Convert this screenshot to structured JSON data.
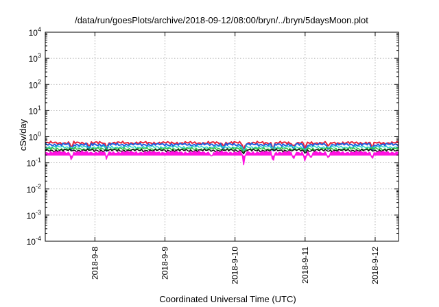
{
  "chart_data": {
    "type": "line",
    "title": "/data/run/goesPlots/archive/2018-09-12/08:00/bryn/../bryn/5daysMoon.plot",
    "xlabel": "Coordinated Universal Time (UTC)",
    "ylabel": "cSv/day",
    "x_scale": "date",
    "y_scale": "log",
    "xlim": [
      "2018-09-07T07:00",
      "2018-09-12T08:00"
    ],
    "ylim": [
      0.0001,
      10000
    ],
    "grid": true,
    "legend": "none",
    "y_ticks": [
      {
        "value": 0.0001,
        "base": "10",
        "exp": "-4"
      },
      {
        "value": 0.001,
        "base": "10",
        "exp": "-3"
      },
      {
        "value": 0.01,
        "base": "10",
        "exp": "-2"
      },
      {
        "value": 0.1,
        "base": "10",
        "exp": "-1"
      },
      {
        "value": 1,
        "base": "10",
        "exp": "0"
      },
      {
        "value": 10,
        "base": "10",
        "exp": "1"
      },
      {
        "value": 100,
        "base": "10",
        "exp": "2"
      },
      {
        "value": 1000,
        "base": "10",
        "exp": "3"
      },
      {
        "value": 10000,
        "base": "10",
        "exp": "4"
      }
    ],
    "x_ticks": [
      {
        "value": "2018-09-08",
        "label": "2018-9-8"
      },
      {
        "value": "2018-09-09",
        "label": "2018-9-9"
      },
      {
        "value": "2018-09-10",
        "label": "2018-9-10"
      },
      {
        "value": "2018-09-11",
        "label": "2018-9-11"
      },
      {
        "value": "2018-09-12",
        "label": "2018-9-12"
      }
    ],
    "series": [
      {
        "color": "#e8203a",
        "base": 0.58,
        "width": 2,
        "fill": false,
        "dips": [
          {
            "x": "2018-09-07T16:00",
            "y": 0.35
          },
          {
            "x": "2018-09-07T22:00",
            "y": 0.42
          },
          {
            "x": "2018-09-08T04:00",
            "y": 0.38
          },
          {
            "x": "2018-09-09T20:00",
            "y": 0.45
          },
          {
            "x": "2018-09-10T03:00",
            "y": 0.3
          },
          {
            "x": "2018-09-10T13:00",
            "y": 0.34
          },
          {
            "x": "2018-09-10T20:00",
            "y": 0.42
          },
          {
            "x": "2018-09-11T00:00",
            "y": 0.32
          },
          {
            "x": "2018-09-11T08:00",
            "y": 0.4
          },
          {
            "x": "2018-09-11T23:00",
            "y": 0.35
          }
        ]
      },
      {
        "color": "#1f5fe0",
        "base": 0.5,
        "width": 2,
        "fill": false,
        "dips": [
          {
            "x": "2018-09-07T16:00",
            "y": 0.25
          },
          {
            "x": "2018-09-07T22:00",
            "y": 0.3
          },
          {
            "x": "2018-09-08T04:00",
            "y": 0.26
          },
          {
            "x": "2018-09-09T20:00",
            "y": 0.32
          },
          {
            "x": "2018-09-10T03:00",
            "y": 0.2
          },
          {
            "x": "2018-09-10T13:00",
            "y": 0.22
          },
          {
            "x": "2018-09-10T20:00",
            "y": 0.3
          },
          {
            "x": "2018-09-11T00:00",
            "y": 0.2
          },
          {
            "x": "2018-09-11T08:00",
            "y": 0.27
          },
          {
            "x": "2018-09-11T23:00",
            "y": 0.24
          }
        ]
      },
      {
        "color": "#22d0c8",
        "base": 0.4,
        "width": 1.5,
        "fill": false,
        "dips": [
          {
            "x": "2018-09-10T03:00",
            "y": 0.28
          },
          {
            "x": "2018-09-11T00:00",
            "y": 0.3
          }
        ]
      },
      {
        "color": "#2fbf3a",
        "base": 0.34,
        "width": 1.5,
        "fill": false,
        "dips": [
          {
            "x": "2018-09-10T03:00",
            "y": 0.25
          },
          {
            "x": "2018-09-11T00:00",
            "y": 0.26
          }
        ]
      },
      {
        "color": "#111111",
        "base": 0.3,
        "width": 1.5,
        "fill": false,
        "dips": [
          {
            "x": "2018-09-10T03:00",
            "y": 0.22
          },
          {
            "x": "2018-09-11T00:00",
            "y": 0.23
          }
        ]
      },
      {
        "color": "#ff10e0",
        "base": 0.25,
        "width": 1.5,
        "fill": true,
        "fill_base": 0.19,
        "dips": [
          {
            "x": "2018-09-07T16:00",
            "y": 0.11
          },
          {
            "x": "2018-09-08T04:00",
            "y": 0.13
          },
          {
            "x": "2018-09-09T16:00",
            "y": 0.16
          },
          {
            "x": "2018-09-10T03:00",
            "y": 0.07
          },
          {
            "x": "2018-09-10T13:00",
            "y": 0.09
          },
          {
            "x": "2018-09-10T20:00",
            "y": 0.11
          },
          {
            "x": "2018-09-11T00:00",
            "y": 0.1
          },
          {
            "x": "2018-09-11T02:00",
            "y": 0.12
          },
          {
            "x": "2018-09-11T08:00",
            "y": 0.13
          },
          {
            "x": "2018-09-11T23:00",
            "y": 0.13
          }
        ]
      }
    ]
  }
}
